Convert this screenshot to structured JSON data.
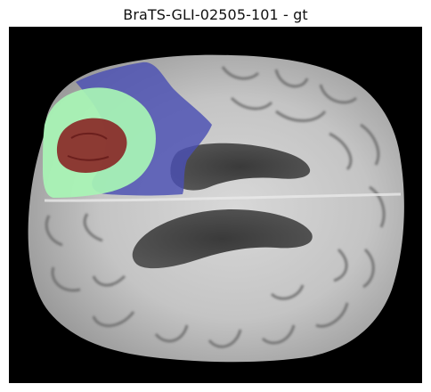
{
  "figure": {
    "title": "BraTS-GLI-02505-101 - gt"
  },
  "segmentation": {
    "labels": [
      {
        "id": "edema",
        "color": "#4B4FB3"
      },
      {
        "id": "enhancing-rim",
        "color": "#A8F5B5"
      },
      {
        "id": "necrotic-core",
        "color": "#8A2F2C"
      }
    ]
  }
}
